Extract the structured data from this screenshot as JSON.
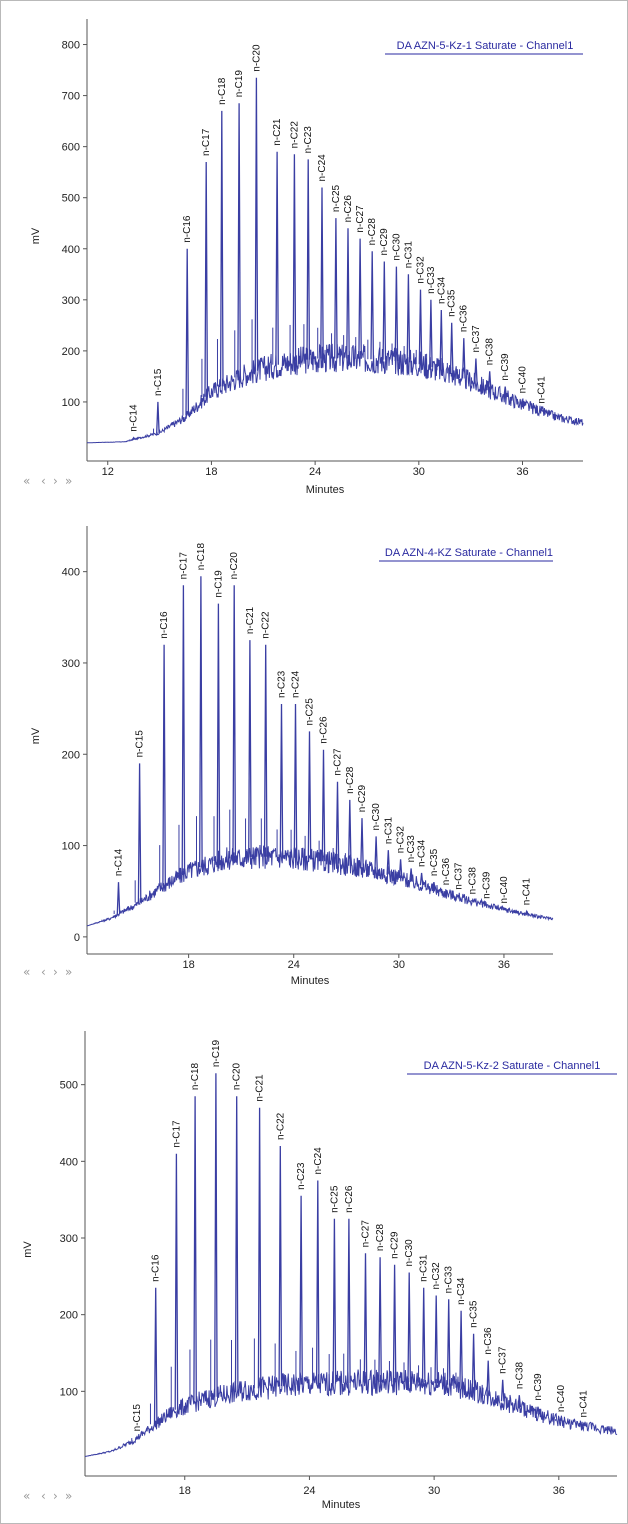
{
  "nav": {
    "rewind": "«",
    "back": "‹",
    "forward": "›",
    "fastforward": "»"
  },
  "colors": {
    "trace": "#3a3ea3",
    "axis": "#555555",
    "title": "#2a2aa0"
  },
  "chart_data": [
    {
      "type": "line",
      "title": "DA AZN-5-Kz-1 Saturate - Channel1",
      "xlabel": "Minutes",
      "ylabel": "mV",
      "xlim": [
        10.8,
        39.5
      ],
      "ylim": [
        0,
        850
      ],
      "xticks": [
        12,
        18,
        24,
        30,
        36
      ],
      "yticks": [
        100,
        200,
        300,
        400,
        500,
        600,
        700,
        800
      ],
      "baseline": [
        [
          10.8,
          20
        ],
        [
          13,
          22
        ],
        [
          15,
          40
        ],
        [
          16.5,
          70
        ],
        [
          18,
          120
        ],
        [
          20,
          155
        ],
        [
          22,
          175
        ],
        [
          24,
          185
        ],
        [
          26,
          185
        ],
        [
          28,
          183
        ],
        [
          30,
          175
        ],
        [
          32,
          155
        ],
        [
          34,
          125
        ],
        [
          36,
          95
        ],
        [
          38,
          70
        ],
        [
          39.5,
          60
        ]
      ],
      "peaks": [
        {
          "label": "n-C14",
          "x": 13.5,
          "y": 30
        },
        {
          "label": "n-C15",
          "x": 14.9,
          "y": 100
        },
        {
          "label": "n-C16",
          "x": 16.6,
          "y": 400
        },
        {
          "label": "n-C17",
          "x": 17.7,
          "y": 570
        },
        {
          "label": "n-C18",
          "x": 18.6,
          "y": 670
        },
        {
          "label": "n-C19",
          "x": 19.6,
          "y": 685
        },
        {
          "label": "n-C20",
          "x": 20.6,
          "y": 735
        },
        {
          "label": "n-C21",
          "x": 21.8,
          "y": 590
        },
        {
          "label": "n-C22",
          "x": 22.8,
          "y": 585
        },
        {
          "label": "n-C23",
          "x": 23.6,
          "y": 575
        },
        {
          "label": "n-C24",
          "x": 24.4,
          "y": 520
        },
        {
          "label": "n-C25",
          "x": 25.2,
          "y": 460
        },
        {
          "label": "n-C26",
          "x": 25.9,
          "y": 440
        },
        {
          "label": "n-C27",
          "x": 26.6,
          "y": 420
        },
        {
          "label": "n-C28",
          "x": 27.3,
          "y": 395
        },
        {
          "label": "n-C29",
          "x": 28.0,
          "y": 375
        },
        {
          "label": "n-C30",
          "x": 28.7,
          "y": 365
        },
        {
          "label": "n-C31",
          "x": 29.4,
          "y": 350
        },
        {
          "label": "n-C32",
          "x": 30.1,
          "y": 320
        },
        {
          "label": "n-C33",
          "x": 30.7,
          "y": 300
        },
        {
          "label": "n-C34",
          "x": 31.3,
          "y": 280
        },
        {
          "label": "n-C35",
          "x": 31.9,
          "y": 255
        },
        {
          "label": "n-C36",
          "x": 32.6,
          "y": 225
        },
        {
          "label": "n-C37",
          "x": 33.3,
          "y": 185
        },
        {
          "label": "n-C38",
          "x": 34.1,
          "y": 160
        },
        {
          "label": "n-C39",
          "x": 35.0,
          "y": 130
        },
        {
          "label": "n-C40",
          "x": 36.0,
          "y": 105
        },
        {
          "label": "n-C41",
          "x": 37.1,
          "y": 85
        }
      ]
    },
    {
      "type": "line",
      "title": "DA AZN-4-KZ Saturate - Channel1",
      "xlabel": "Minutes",
      "ylabel": "mV",
      "xlim": [
        12.2,
        38.8
      ],
      "ylim": [
        -10,
        450
      ],
      "xticks": [
        18,
        24,
        30,
        36
      ],
      "yticks": [
        0,
        100,
        200,
        300,
        400
      ],
      "baseline": [
        [
          12.2,
          12
        ],
        [
          13.5,
          20
        ],
        [
          15,
          35
        ],
        [
          16.5,
          55
        ],
        [
          18,
          72
        ],
        [
          20,
          85
        ],
        [
          22,
          88
        ],
        [
          24,
          87
        ],
        [
          26,
          82
        ],
        [
          28,
          75
        ],
        [
          30,
          65
        ],
        [
          32,
          52
        ],
        [
          34,
          40
        ],
        [
          36,
          30
        ],
        [
          38,
          22
        ],
        [
          38.8,
          20
        ]
      ],
      "peaks": [
        {
          "label": "n-C14",
          "x": 14.0,
          "y": 60
        },
        {
          "label": "n-C15",
          "x": 15.2,
          "y": 190
        },
        {
          "label": "n-C16",
          "x": 16.6,
          "y": 320
        },
        {
          "label": "n-C17",
          "x": 17.7,
          "y": 385
        },
        {
          "label": "n-C18",
          "x": 18.7,
          "y": 395
        },
        {
          "label": "n-C19",
          "x": 19.7,
          "y": 365
        },
        {
          "label": "n-C20",
          "x": 20.6,
          "y": 385
        },
        {
          "label": "n-C21",
          "x": 21.5,
          "y": 325
        },
        {
          "label": "n-C22",
          "x": 22.4,
          "y": 320
        },
        {
          "label": "n-C23",
          "x": 23.3,
          "y": 255
        },
        {
          "label": "n-C24",
          "x": 24.1,
          "y": 255
        },
        {
          "label": "n-C25",
          "x": 24.9,
          "y": 225
        },
        {
          "label": "n-C26",
          "x": 25.7,
          "y": 205
        },
        {
          "label": "n-C27",
          "x": 26.5,
          "y": 170
        },
        {
          "label": "n-C28",
          "x": 27.2,
          "y": 150
        },
        {
          "label": "n-C29",
          "x": 27.9,
          "y": 130
        },
        {
          "label": "n-C30",
          "x": 28.7,
          "y": 110
        },
        {
          "label": "n-C31",
          "x": 29.4,
          "y": 95
        },
        {
          "label": "n-C32",
          "x": 30.1,
          "y": 85
        },
        {
          "label": "n-C33",
          "x": 30.7,
          "y": 75
        },
        {
          "label": "n-C34",
          "x": 31.3,
          "y": 70
        },
        {
          "label": "n-C35",
          "x": 32.0,
          "y": 60
        },
        {
          "label": "n-C36",
          "x": 32.7,
          "y": 50
        },
        {
          "label": "n-C37",
          "x": 33.4,
          "y": 45
        },
        {
          "label": "n-C38",
          "x": 34.2,
          "y": 40
        },
        {
          "label": "n-C39",
          "x": 35.0,
          "y": 35
        },
        {
          "label": "n-C40",
          "x": 36.0,
          "y": 30
        },
        {
          "label": "n-C41",
          "x": 37.3,
          "y": 28
        }
      ]
    },
    {
      "type": "line",
      "title": "DA AZN-5-Kz-2 Saturate - Channel1",
      "xlabel": "Minutes",
      "ylabel": "mV",
      "xlim": [
        13.2,
        38.8
      ],
      "ylim": [
        0,
        570
      ],
      "xticks": [
        18,
        24,
        30,
        36
      ],
      "yticks": [
        100,
        200,
        300,
        400,
        500
      ],
      "baseline": [
        [
          13.2,
          15
        ],
        [
          14.5,
          22
        ],
        [
          15.5,
          35
        ],
        [
          16.5,
          55
        ],
        [
          17.5,
          75
        ],
        [
          19,
          90
        ],
        [
          21,
          102
        ],
        [
          23,
          108
        ],
        [
          25,
          110
        ],
        [
          27,
          112
        ],
        [
          29,
          112
        ],
        [
          30.5,
          110
        ],
        [
          32,
          100
        ],
        [
          33.5,
          85
        ],
        [
          35,
          70
        ],
        [
          36.5,
          58
        ],
        [
          38.8,
          48
        ]
      ],
      "peaks": [
        {
          "label": "n-C15",
          "x": 15.7,
          "y": 40
        },
        {
          "label": "n-C16",
          "x": 16.6,
          "y": 235
        },
        {
          "label": "n-C17",
          "x": 17.6,
          "y": 410
        },
        {
          "label": "n-C18",
          "x": 18.5,
          "y": 485
        },
        {
          "label": "n-C19",
          "x": 19.5,
          "y": 515
        },
        {
          "label": "n-C20",
          "x": 20.5,
          "y": 485
        },
        {
          "label": "n-C21",
          "x": 21.6,
          "y": 470
        },
        {
          "label": "n-C22",
          "x": 22.6,
          "y": 420
        },
        {
          "label": "n-C23",
          "x": 23.6,
          "y": 355
        },
        {
          "label": "n-C24",
          "x": 24.4,
          "y": 375
        },
        {
          "label": "n-C25",
          "x": 25.2,
          "y": 325
        },
        {
          "label": "n-C26",
          "x": 25.9,
          "y": 325
        },
        {
          "label": "n-C27",
          "x": 26.7,
          "y": 280
        },
        {
          "label": "n-C28",
          "x": 27.4,
          "y": 275
        },
        {
          "label": "n-C29",
          "x": 28.1,
          "y": 265
        },
        {
          "label": "n-C30",
          "x": 28.8,
          "y": 255
        },
        {
          "label": "n-C31",
          "x": 29.5,
          "y": 235
        },
        {
          "label": "n-C32",
          "x": 30.1,
          "y": 225
        },
        {
          "label": "n-C33",
          "x": 30.7,
          "y": 220
        },
        {
          "label": "n-C34",
          "x": 31.3,
          "y": 205
        },
        {
          "label": "n-C35",
          "x": 31.9,
          "y": 175
        },
        {
          "label": "n-C36",
          "x": 32.6,
          "y": 140
        },
        {
          "label": "n-C37",
          "x": 33.3,
          "y": 115
        },
        {
          "label": "n-C38",
          "x": 34.1,
          "y": 95
        },
        {
          "label": "n-C39",
          "x": 35.0,
          "y": 80
        },
        {
          "label": "n-C40",
          "x": 36.1,
          "y": 65
        },
        {
          "label": "n-C41",
          "x": 37.2,
          "y": 58
        }
      ]
    }
  ]
}
